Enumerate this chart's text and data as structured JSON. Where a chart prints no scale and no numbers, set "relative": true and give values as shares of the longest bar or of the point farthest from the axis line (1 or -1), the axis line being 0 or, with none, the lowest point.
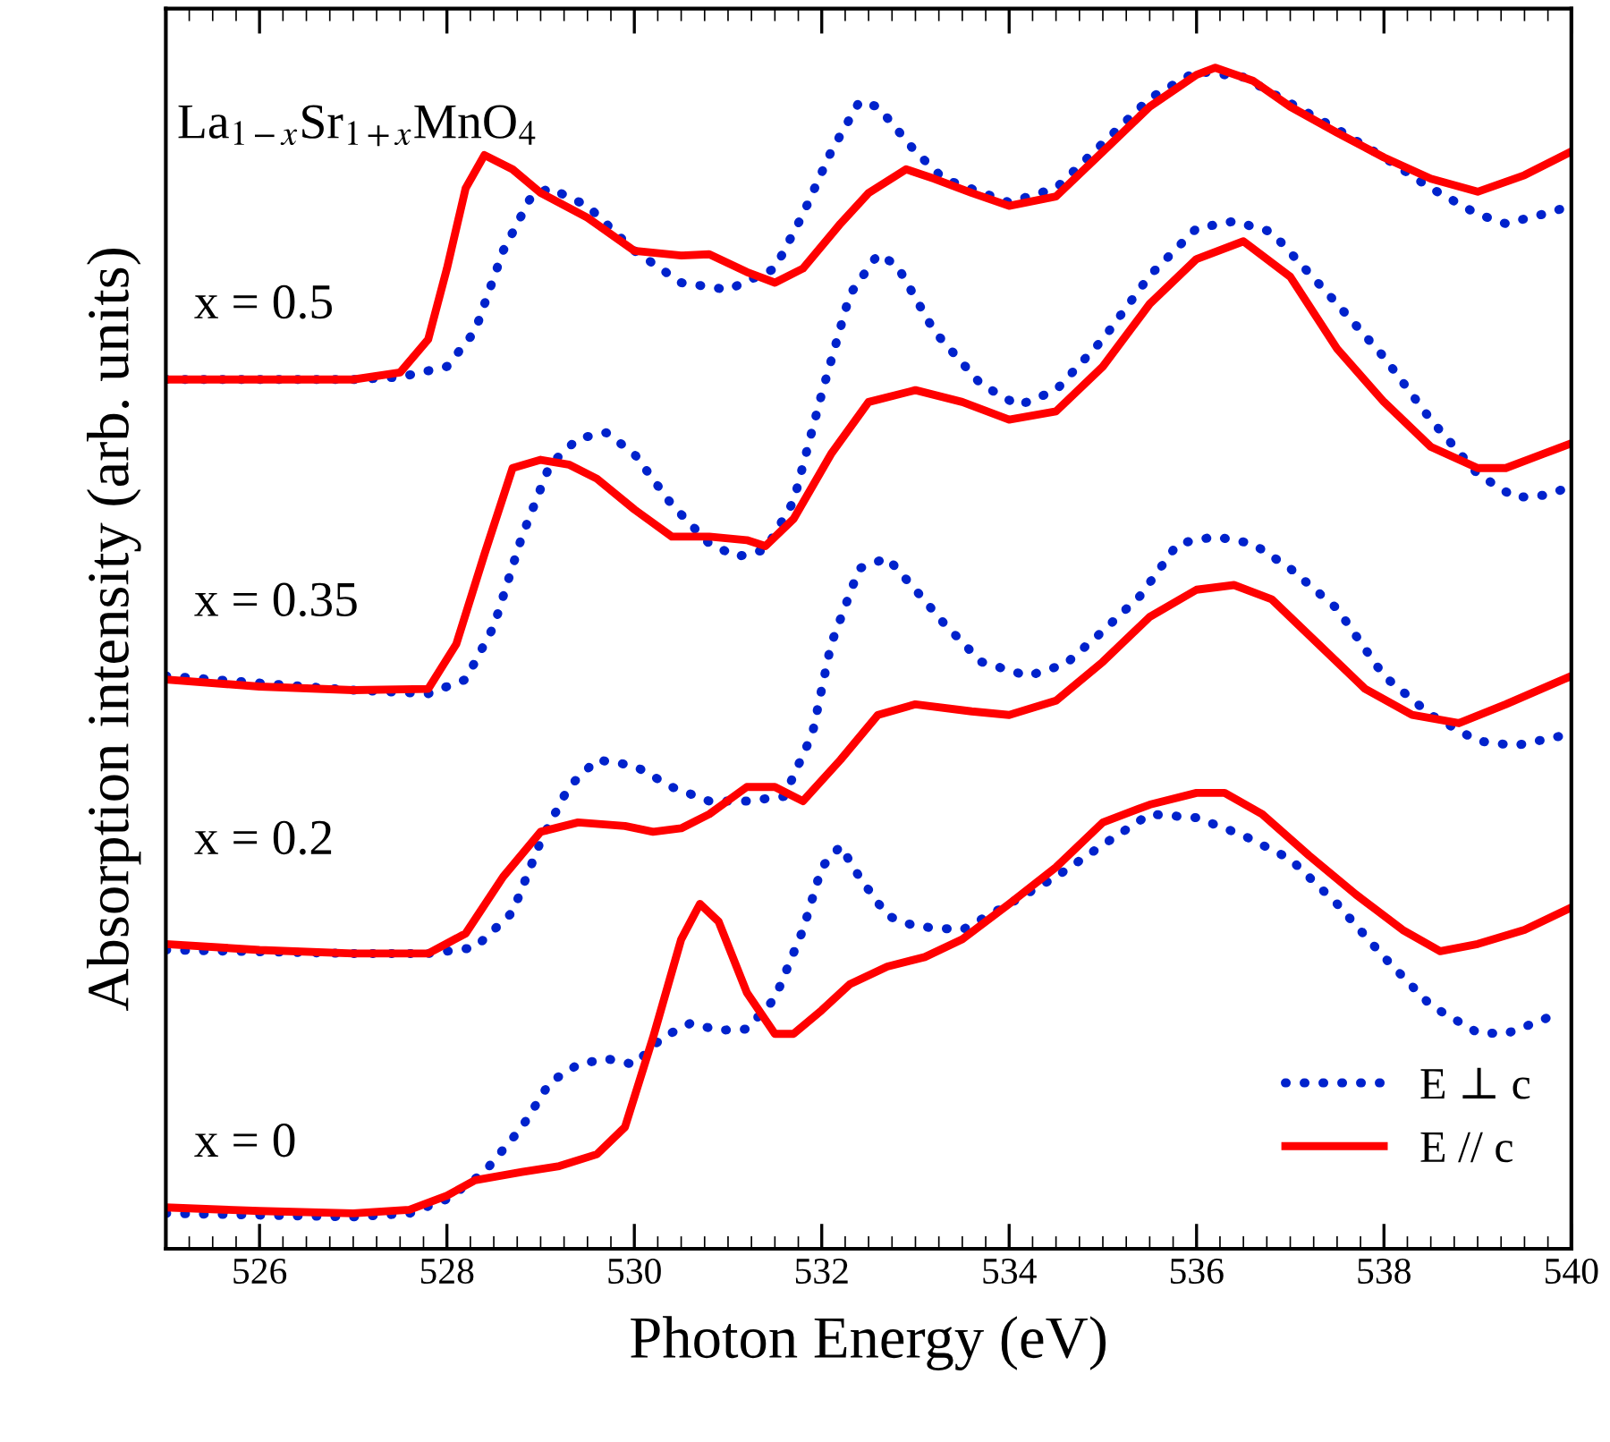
{
  "chart_data": {
    "type": "line",
    "xlabel": "Photon Energy (eV)",
    "ylabel": "Absorption intensity (arb. units)",
    "relative": true,
    "xlim": [
      525,
      540
    ],
    "xticks": [
      526,
      528,
      530,
      532,
      534,
      536,
      538,
      540
    ],
    "grid": false,
    "legend": "bottom right",
    "marker": "none",
    "annotations": [
      "La$_{1−x}$Sr$_{1+x}$MnO$_{4}$",
      "x = 0.5",
      "x = 0.35",
      "x = 0.2",
      "x = 0"
    ],
    "series": [
      {
        "name": "E ⊥ c",
        "color": "#0022cc",
        "line_style": "dotted",
        "x": [
          525,
          527,
          527.6,
          528,
          528.4,
          528.8,
          529.1,
          529.4,
          529.7,
          530,
          530.3,
          530.6,
          530.9,
          531.2,
          531.5,
          531.8,
          532,
          532.2,
          532.4,
          532.7,
          533,
          533.5,
          534,
          534.5,
          535,
          535.5,
          536,
          536.5,
          537,
          537.5,
          538,
          538.5,
          539,
          539.3,
          539.7,
          539.8
        ],
        "values": [
          0.03,
          0.027,
          0.03,
          0.042,
          0.065,
          0.103,
          0.141,
          0.156,
          0.161,
          0.156,
          0.179,
          0.191,
          0.185,
          0.186,
          0.212,
          0.27,
          0.323,
          0.341,
          0.315,
          0.282,
          0.273,
          0.27,
          0.292,
          0.315,
          0.342,
          0.368,
          0.365,
          0.35,
          0.33,
          0.292,
          0.247,
          0.206,
          0.183,
          0.182,
          0.194,
          0.198
        ]
      },
      {
        "name": "E // c",
        "color": "#ff0000",
        "line_style": "solid",
        "x": [
          525,
          526,
          527,
          527.6,
          528,
          528.3,
          528.8,
          529.2,
          529.6,
          529.9,
          530.2,
          530.5,
          530.7,
          530.9,
          531.2,
          531.5,
          531.7,
          532,
          532.3,
          532.7,
          533.1,
          533.5,
          534,
          534.5,
          535,
          535.5,
          536,
          536.3,
          536.7,
          537.2,
          537.7,
          538.2,
          538.6,
          539,
          539.5,
          540
        ],
        "values": [
          0.035,
          0.032,
          0.03,
          0.033,
          0.045,
          0.058,
          0.065,
          0.07,
          0.08,
          0.103,
          0.179,
          0.262,
          0.292,
          0.277,
          0.217,
          0.182,
          0.182,
          0.202,
          0.224,
          0.239,
          0.247,
          0.262,
          0.292,
          0.323,
          0.361,
          0.376,
          0.386,
          0.386,
          0.368,
          0.333,
          0.3,
          0.27,
          0.252,
          0.258,
          0.27,
          0.289
        ]
      },
      {
        "color": "#0022cc",
        "line_style": "dotted",
        "x": [
          525,
          527,
          527.8,
          528.3,
          528.7,
          529,
          529.3,
          529.6,
          530,
          530.4,
          530.8,
          531.2,
          531.6,
          531.9,
          532.1,
          532.4,
          532.7,
          533,
          533.3,
          533.7,
          534.2,
          534.6,
          535,
          535.4,
          535.8,
          536.2,
          536.6,
          537,
          537.5,
          538,
          538.5,
          539,
          539.4,
          540
        ],
        "values": [
          0.253,
          0.25,
          0.25,
          0.255,
          0.285,
          0.345,
          0.391,
          0.414,
          0.409,
          0.391,
          0.379,
          0.379,
          0.383,
          0.436,
          0.512,
          0.576,
          0.585,
          0.558,
          0.53,
          0.497,
          0.485,
          0.495,
          0.523,
          0.553,
          0.597,
          0.603,
          0.597,
          0.576,
          0.542,
          0.485,
          0.452,
          0.43,
          0.426,
          0.436
        ]
      },
      {
        "color": "#ff0000",
        "line_style": "solid",
        "x": [
          525,
          526,
          527,
          527.8,
          528.2,
          528.6,
          529,
          529.4,
          529.9,
          530.2,
          530.5,
          530.8,
          531.2,
          531.5,
          531.8,
          532.2,
          532.6,
          533,
          533.6,
          534,
          534.5,
          535,
          535.5,
          536,
          536.4,
          536.8,
          537.3,
          537.8,
          538.3,
          538.8,
          539.3,
          540
        ],
        "values": [
          0.258,
          0.253,
          0.25,
          0.25,
          0.267,
          0.315,
          0.353,
          0.361,
          0.358,
          0.353,
          0.356,
          0.368,
          0.391,
          0.391,
          0.379,
          0.414,
          0.452,
          0.461,
          0.455,
          0.452,
          0.464,
          0.497,
          0.535,
          0.558,
          0.562,
          0.55,
          0.512,
          0.474,
          0.452,
          0.445,
          0.461,
          0.485
        ]
      },
      {
        "color": "#0022cc",
        "line_style": "dotted",
        "x": [
          525,
          526,
          527,
          527.8,
          528.2,
          528.5,
          528.8,
          529.1,
          529.4,
          529.7,
          530,
          530.4,
          530.8,
          531.1,
          531.4,
          531.7,
          532,
          532.3,
          532.6,
          532.8,
          533.2,
          533.7,
          534.1,
          534.5,
          535,
          535.5,
          536,
          536.4,
          536.8,
          537.5,
          538,
          538.5,
          539,
          539.4,
          539.7,
          540
        ],
        "values": [
          0.485,
          0.479,
          0.473,
          0.47,
          0.482,
          0.527,
          0.603,
          0.664,
          0.686,
          0.691,
          0.673,
          0.63,
          0.597,
          0.586,
          0.592,
          0.633,
          0.724,
          0.808,
          0.842,
          0.833,
          0.777,
          0.732,
          0.714,
          0.727,
          0.77,
          0.824,
          0.864,
          0.87,
          0.861,
          0.8,
          0.755,
          0.702,
          0.656,
          0.636,
          0.638,
          0.645
        ]
      },
      {
        "color": "#ff0000",
        "line_style": "solid",
        "x": [
          525,
          526,
          527,
          527.8,
          528.1,
          528.4,
          528.7,
          529,
          529.3,
          529.6,
          530,
          530.4,
          530.8,
          531.2,
          531.4,
          531.7,
          532.1,
          532.5,
          533,
          533.5,
          534,
          534.5,
          535,
          535.5,
          536,
          536.5,
          537,
          537.5,
          538,
          538.5,
          539,
          539.3,
          539.7,
          540
        ],
        "values": [
          0.482,
          0.476,
          0.473,
          0.474,
          0.512,
          0.588,
          0.661,
          0.668,
          0.664,
          0.652,
          0.626,
          0.603,
          0.603,
          0.6,
          0.595,
          0.618,
          0.673,
          0.717,
          0.727,
          0.717,
          0.702,
          0.709,
          0.747,
          0.8,
          0.838,
          0.853,
          0.823,
          0.762,
          0.717,
          0.679,
          0.661,
          0.661,
          0.673,
          0.682
        ]
      },
      {
        "color": "#0022cc",
        "line_style": "dotted",
        "x": [
          525,
          527,
          527.5,
          528,
          528.3,
          528.6,
          528.9,
          529.1,
          529.5,
          530,
          530.5,
          531,
          531.5,
          531.8,
          532.1,
          532.4,
          532.6,
          533,
          533.3,
          534,
          534.5,
          535,
          535.5,
          536,
          536.5,
          537,
          537.5,
          538,
          538.5,
          539,
          539.3,
          539.7,
          540
        ],
        "values": [
          0.736,
          0.736,
          0.738,
          0.747,
          0.777,
          0.845,
          0.891,
          0.898,
          0.883,
          0.845,
          0.818,
          0.812,
          0.83,
          0.876,
          0.929,
          0.971,
          0.967,
          0.929,
          0.906,
          0.886,
          0.898,
          0.936,
          0.974,
          0.997,
          0.992,
          0.97,
          0.948,
          0.924,
          0.898,
          0.876,
          0.868,
          0.876,
          0.883
        ]
      },
      {
        "color": "#ff0000",
        "line_style": "solid",
        "x": [
          525,
          526,
          527,
          527.5,
          527.8,
          528,
          528.2,
          528.4,
          528.7,
          529,
          529.5,
          530,
          530.5,
          530.8,
          531.2,
          531.5,
          531.8,
          532.2,
          532.5,
          532.9,
          533.2,
          533.6,
          534,
          534.5,
          535,
          535.5,
          536,
          536.2,
          536.6,
          537,
          537.5,
          538,
          538.5,
          539,
          539.5,
          540
        ],
        "values": [
          0.736,
          0.736,
          0.736,
          0.742,
          0.77,
          0.83,
          0.898,
          0.926,
          0.914,
          0.894,
          0.873,
          0.845,
          0.841,
          0.842,
          0.827,
          0.818,
          0.83,
          0.868,
          0.894,
          0.914,
          0.906,
          0.894,
          0.883,
          0.891,
          0.929,
          0.967,
          0.994,
          1.0,
          0.989,
          0.967,
          0.945,
          0.924,
          0.906,
          0.895,
          0.909,
          0.929
        ]
      }
    ]
  }
}
